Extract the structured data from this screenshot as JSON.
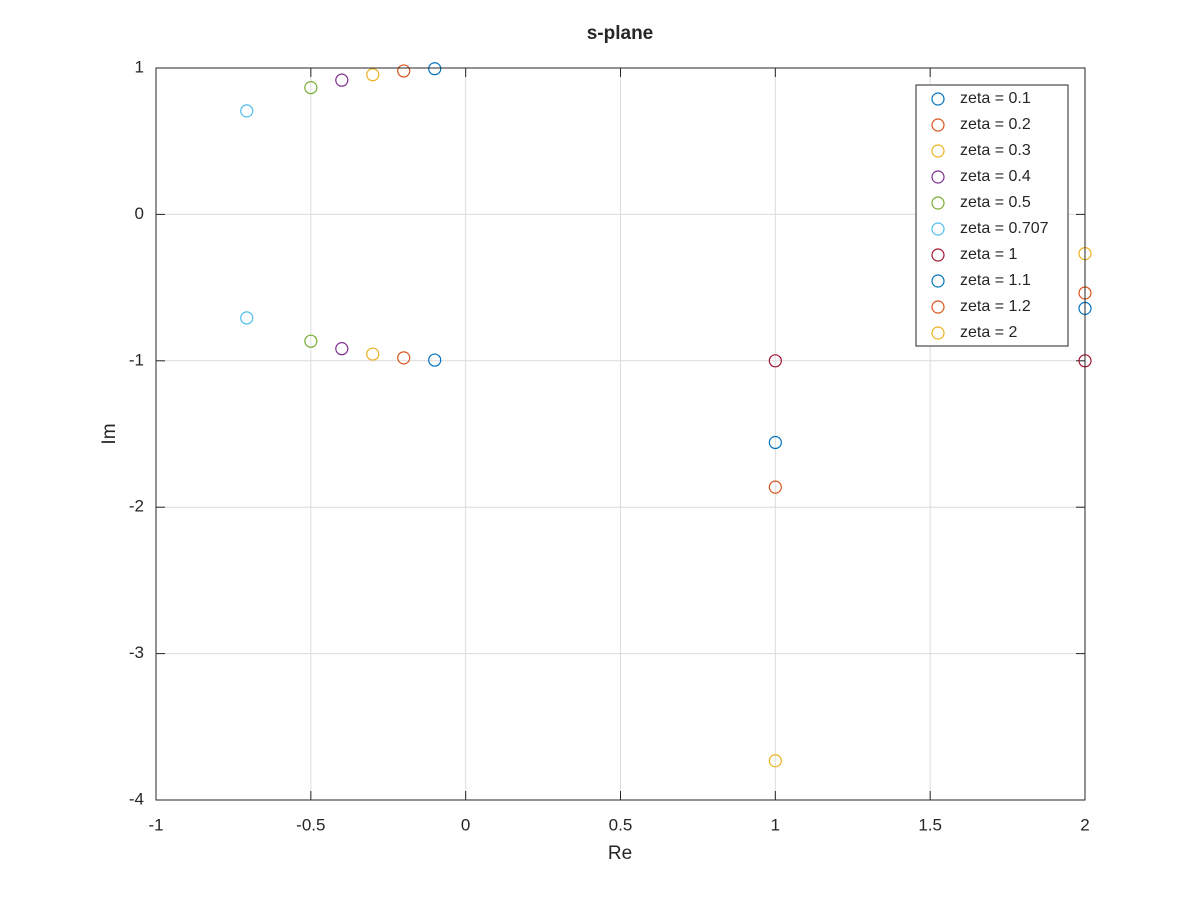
{
  "chart_data": {
    "type": "scatter",
    "title": "s-plane",
    "x_label": "Re",
    "y_label": "Im",
    "xlim": [
      -1,
      2
    ],
    "ylim": [
      -4,
      1
    ],
    "xticks": [
      -1,
      -0.5,
      0,
      0.5,
      1,
      1.5,
      2
    ],
    "yticks": [
      -4,
      -3,
      -2,
      -1,
      0,
      1
    ],
    "grid": true,
    "legend_position": "northeast",
    "series": [
      {
        "name": "zeta = 0.1",
        "color": "#0072bd",
        "x": [
          -0.1,
          -0.1
        ],
        "y": [
          0.995,
          -0.995
        ]
      },
      {
        "name": "zeta = 0.2",
        "color": "#d95319",
        "x": [
          -0.2,
          -0.2
        ],
        "y": [
          0.98,
          -0.98
        ]
      },
      {
        "name": "zeta = 0.3",
        "color": "#edb120",
        "x": [
          -0.3,
          -0.3
        ],
        "y": [
          0.954,
          -0.954
        ]
      },
      {
        "name": "zeta = 0.4",
        "color": "#7e2f8e",
        "x": [
          -0.4,
          -0.4
        ],
        "y": [
          0.917,
          -0.917
        ]
      },
      {
        "name": "zeta = 0.5",
        "color": "#77ac30",
        "x": [
          -0.5,
          -0.5
        ],
        "y": [
          0.866,
          -0.866
        ]
      },
      {
        "name": "zeta = 0.707",
        "color": "#4dbeee",
        "x": [
          -0.707,
          -0.707
        ],
        "y": [
          0.707,
          -0.707
        ]
      },
      {
        "name": "zeta = 1",
        "color": "#a2142f",
        "x": [
          1,
          2
        ],
        "y": [
          -1,
          -1
        ]
      },
      {
        "name": "zeta = 1.1",
        "color": "#0072bd",
        "x": [
          1,
          2
        ],
        "y": [
          -1.558,
          -0.642
        ]
      },
      {
        "name": "zeta = 1.2",
        "color": "#d95319",
        "x": [
          1,
          2
        ],
        "y": [
          -1.863,
          -0.537
        ]
      },
      {
        "name": "zeta = 2",
        "color": "#edb120",
        "x": [
          1,
          2
        ],
        "y": [
          -3.732,
          -0.268
        ]
      }
    ]
  }
}
